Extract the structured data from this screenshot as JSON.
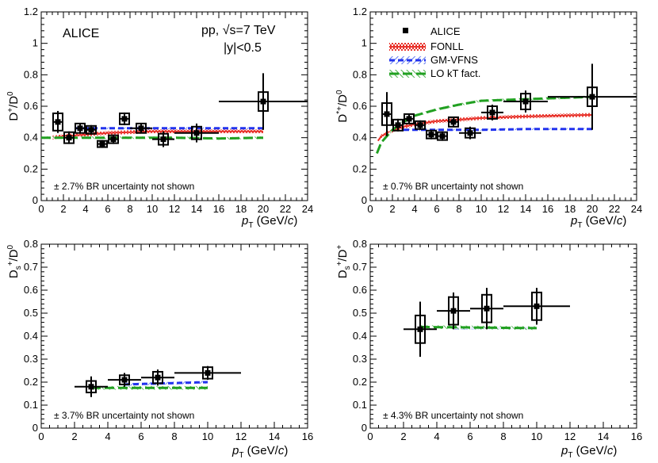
{
  "chart_data": [
    {
      "type": "scatter",
      "id": "dplus",
      "ylabel": "D+/D0",
      "xlabel": "pT (GeV/c)",
      "xlim": [
        0,
        24
      ],
      "ylim": [
        0,
        1.2
      ],
      "xticks": [
        0,
        2,
        4,
        6,
        8,
        10,
        12,
        14,
        16,
        18,
        20,
        22,
        24
      ],
      "yticks": [
        0,
        0.2,
        0.4,
        0.6,
        0.8,
        1,
        1.2
      ],
      "ytick_labels": [
        "0",
        "0.2",
        "0.4",
        "0.6",
        "0.8",
        "1",
        "1.2"
      ],
      "annotations": {
        "experiment": "ALICE",
        "system": "pp, √s=7 TeV",
        "rapidity": "|y|<0.5",
        "br_note": "± 2.7% BR uncertainty not shown"
      },
      "points": [
        {
          "x": 1.5,
          "y": 0.5,
          "xlo": 1,
          "xhi": 2,
          "stat": 0.07,
          "syst": 0.055
        },
        {
          "x": 2.5,
          "y": 0.4,
          "xlo": 2,
          "xhi": 3,
          "stat": 0.04,
          "syst": 0.035
        },
        {
          "x": 3.5,
          "y": 0.46,
          "xlo": 3,
          "xhi": 4,
          "stat": 0.03,
          "syst": 0.03
        },
        {
          "x": 4.5,
          "y": 0.45,
          "xlo": 4,
          "xhi": 5,
          "stat": 0.03,
          "syst": 0.025
        },
        {
          "x": 5.5,
          "y": 0.36,
          "xlo": 5,
          "xhi": 6,
          "stat": 0.025,
          "syst": 0.02
        },
        {
          "x": 6.5,
          "y": 0.39,
          "xlo": 6,
          "xhi": 7,
          "stat": 0.03,
          "syst": 0.025
        },
        {
          "x": 7.5,
          "y": 0.52,
          "xlo": 7,
          "xhi": 8,
          "stat": 0.04,
          "syst": 0.035
        },
        {
          "x": 9,
          "y": 0.46,
          "xlo": 8,
          "xhi": 10,
          "stat": 0.03,
          "syst": 0.03
        },
        {
          "x": 11,
          "y": 0.39,
          "xlo": 10,
          "xhi": 12,
          "stat": 0.05,
          "syst": 0.035
        },
        {
          "x": 14,
          "y": 0.43,
          "xlo": 12,
          "xhi": 16,
          "stat": 0.06,
          "syst": 0.04
        },
        {
          "x": 20,
          "y": 0.63,
          "xlo": 16,
          "xhi": 24,
          "stat": 0.18,
          "syst": 0.06
        }
      ],
      "models": [
        {
          "name": "FONLL",
          "style": "red",
          "x": [
            1,
            2,
            4,
            6,
            8,
            10,
            12,
            16,
            20
          ],
          "y": [
            0.4,
            0.41,
            0.42,
            0.43,
            0.435,
            0.44,
            0.44,
            0.44,
            0.44
          ]
        },
        {
          "name": "GM-VFNS",
          "style": "blue",
          "x": [
            3,
            4,
            6,
            8,
            10,
            12,
            16,
            20
          ],
          "y": [
            0.46,
            0.46,
            0.46,
            0.46,
            0.46,
            0.46,
            0.46,
            0.46
          ]
        },
        {
          "name": "LO kT fact.",
          "style": "green",
          "x": [
            0,
            2,
            4,
            8,
            12,
            16,
            20
          ],
          "y": [
            0.4,
            0.4,
            0.4,
            0.4,
            0.4,
            0.395,
            0.4
          ]
        }
      ]
    },
    {
      "type": "scatter",
      "id": "dstar",
      "ylabel": "D*+/D0",
      "xlabel": "pT (GeV/c)",
      "xlim": [
        0,
        24
      ],
      "ylim": [
        0,
        1.2
      ],
      "xticks": [
        0,
        2,
        4,
        6,
        8,
        10,
        12,
        14,
        16,
        18,
        20,
        22,
        24
      ],
      "yticks": [
        0,
        0.2,
        0.4,
        0.6,
        0.8,
        1,
        1.2
      ],
      "ytick_labels": [
        "0",
        "0.2",
        "0.4",
        "0.6",
        "0.8",
        "1",
        "1.2"
      ],
      "annotations": {
        "br_note": "± 0.7% BR uncertainty not shown"
      },
      "legend": [
        "ALICE",
        "FONLL",
        "GM-VFNS",
        "LO kT fact."
      ],
      "points": [
        {
          "x": 1.5,
          "y": 0.55,
          "xlo": 1,
          "xhi": 2,
          "stat": 0.14,
          "syst": 0.07
        },
        {
          "x": 2.5,
          "y": 0.48,
          "xlo": 2,
          "xhi": 3,
          "stat": 0.04,
          "syst": 0.035
        },
        {
          "x": 3.5,
          "y": 0.52,
          "xlo": 3,
          "xhi": 4,
          "stat": 0.03,
          "syst": 0.03
        },
        {
          "x": 4.5,
          "y": 0.48,
          "xlo": 4,
          "xhi": 5,
          "stat": 0.03,
          "syst": 0.025
        },
        {
          "x": 5.5,
          "y": 0.42,
          "xlo": 5,
          "xhi": 6,
          "stat": 0.03,
          "syst": 0.025
        },
        {
          "x": 6.5,
          "y": 0.41,
          "xlo": 6,
          "xhi": 7,
          "stat": 0.03,
          "syst": 0.025
        },
        {
          "x": 7.5,
          "y": 0.5,
          "xlo": 7,
          "xhi": 8,
          "stat": 0.03,
          "syst": 0.03
        },
        {
          "x": 9,
          "y": 0.43,
          "xlo": 8,
          "xhi": 10,
          "stat": 0.04,
          "syst": 0.03
        },
        {
          "x": 11,
          "y": 0.56,
          "xlo": 10,
          "xhi": 12,
          "stat": 0.05,
          "syst": 0.04
        },
        {
          "x": 14,
          "y": 0.63,
          "xlo": 12,
          "xhi": 16,
          "stat": 0.07,
          "syst": 0.05
        },
        {
          "x": 20,
          "y": 0.66,
          "xlo": 16,
          "xhi": 24,
          "stat": 0.21,
          "syst": 0.06
        }
      ],
      "models": [
        {
          "name": "FONLL",
          "style": "red",
          "x": [
            0.7,
            1,
            2,
            3,
            4,
            6,
            8,
            10,
            14,
            20
          ],
          "y": [
            0.38,
            0.41,
            0.445,
            0.47,
            0.485,
            0.505,
            0.515,
            0.525,
            0.535,
            0.545
          ]
        },
        {
          "name": "GM-VFNS",
          "style": "blue",
          "x": [
            3,
            4,
            6,
            8,
            10,
            14,
            20
          ],
          "y": [
            0.45,
            0.45,
            0.45,
            0.45,
            0.45,
            0.455,
            0.455
          ]
        },
        {
          "name": "LO kT fact.",
          "style": "green",
          "x": [
            0.6,
            1,
            2,
            3,
            4,
            6,
            8,
            10,
            12,
            16,
            20
          ],
          "y": [
            0.3,
            0.37,
            0.45,
            0.5,
            0.54,
            0.58,
            0.61,
            0.635,
            0.64,
            0.65,
            0.66
          ]
        }
      ]
    },
    {
      "type": "scatter",
      "id": "dsd0",
      "ylabel": "Ds+/D0",
      "xlabel": "pT (GeV/c)",
      "xlim": [
        0,
        16
      ],
      "ylim": [
        0,
        0.8
      ],
      "xticks": [
        0,
        2,
        4,
        6,
        8,
        10,
        12,
        14,
        16
      ],
      "yticks": [
        0,
        0.1,
        0.2,
        0.3,
        0.4,
        0.5,
        0.6,
        0.7,
        0.8
      ],
      "ytick_labels": [
        "0",
        "0.1",
        "0.2",
        "0.3",
        "0.4",
        "0.5",
        "0.6",
        "0.7",
        "0.8"
      ],
      "annotations": {
        "br_note": "± 3.7% BR uncertainty not shown"
      },
      "points": [
        {
          "x": 3,
          "y": 0.18,
          "xlo": 2,
          "xhi": 4,
          "stat": 0.045,
          "syst": 0.025
        },
        {
          "x": 5,
          "y": 0.21,
          "xlo": 4,
          "xhi": 6,
          "stat": 0.03,
          "syst": 0.02
        },
        {
          "x": 7,
          "y": 0.22,
          "xlo": 6,
          "xhi": 8,
          "stat": 0.035,
          "syst": 0.025
        },
        {
          "x": 10,
          "y": 0.24,
          "xlo": 8,
          "xhi": 12,
          "stat": 0.03,
          "syst": 0.025
        }
      ],
      "models": [
        {
          "name": "GM-VFNS",
          "style": "blue",
          "x": [
            5,
            10
          ],
          "y": [
            0.19,
            0.2
          ]
        },
        {
          "name": "LO kT fact.",
          "style": "green",
          "x": [
            3,
            10
          ],
          "y": [
            0.175,
            0.175
          ]
        }
      ]
    },
    {
      "type": "scatter",
      "id": "dsdp",
      "ylabel": "Ds+/D+",
      "xlabel": "pT (GeV/c)",
      "xlim": [
        0,
        16
      ],
      "ylim": [
        0,
        0.8
      ],
      "xticks": [
        0,
        2,
        4,
        6,
        8,
        10,
        12,
        14,
        16
      ],
      "yticks": [
        0,
        0.1,
        0.2,
        0.3,
        0.4,
        0.5,
        0.6,
        0.7,
        0.8
      ],
      "ytick_labels": [
        "0",
        "0.1",
        "0.2",
        "0.3",
        "0.4",
        "0.5",
        "0.6",
        "0.7",
        "0.8"
      ],
      "annotations": {
        "br_note": "± 4.3% BR uncertainty not shown"
      },
      "points": [
        {
          "x": 3,
          "y": 0.43,
          "xlo": 2,
          "xhi": 4,
          "stat": 0.12,
          "syst": 0.06
        },
        {
          "x": 5,
          "y": 0.51,
          "xlo": 4,
          "xhi": 6,
          "stat": 0.08,
          "syst": 0.06
        },
        {
          "x": 7,
          "y": 0.52,
          "xlo": 6,
          "xhi": 8,
          "stat": 0.09,
          "syst": 0.06
        },
        {
          "x": 10,
          "y": 0.53,
          "xlo": 8,
          "xhi": 12,
          "stat": 0.08,
          "syst": 0.06
        }
      ],
      "models": [
        {
          "name": "GM-VFNS",
          "style": "blue",
          "x": [
            5,
            10
          ],
          "y": [
            0.435,
            0.435
          ]
        },
        {
          "name": "LO kT fact.",
          "style": "green",
          "x": [
            3,
            10
          ],
          "y": [
            0.44,
            0.435
          ]
        }
      ]
    }
  ]
}
